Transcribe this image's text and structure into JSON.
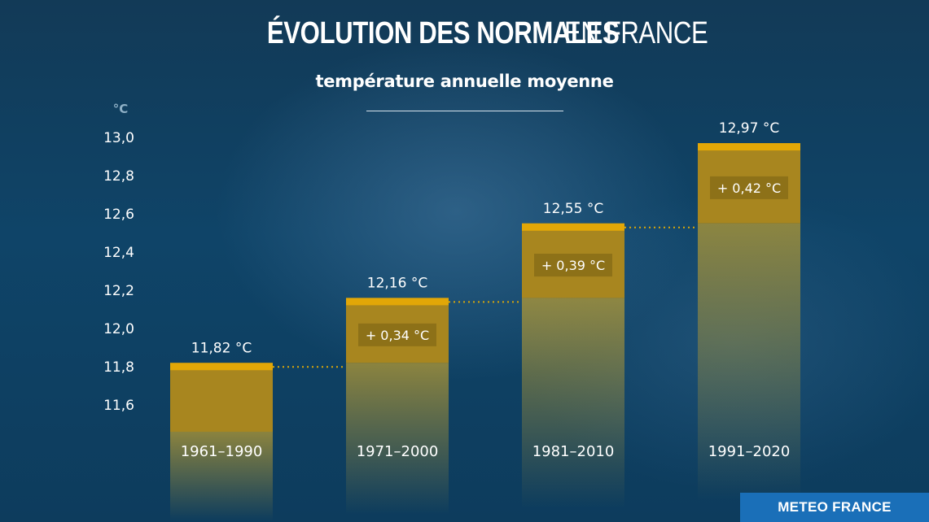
{
  "title": {
    "bold": "ÉVOLUTION DES NORMALES",
    "light": "EN FRANCE"
  },
  "subtitle": "température annuelle moyenne",
  "brand": "METEO FRANCE",
  "colors": {
    "bar": "#a8861f",
    "bar_cap": "#e2a707",
    "delta_box": "#8d7118",
    "connector": "#d9a70a"
  },
  "chart_data": {
    "type": "bar",
    "title": "ÉVOLUTION DES NORMALES EN FRANCE",
    "subtitle": "température annuelle moyenne",
    "ylabel": "°C",
    "ylim": [
      11.4,
      13.0
    ],
    "yticks": [
      11.6,
      11.8,
      12.0,
      12.2,
      12.4,
      12.6,
      12.8,
      13.0
    ],
    "ytick_labels": [
      "11,6",
      "11,8",
      "12,0",
      "12,2",
      "12,4",
      "12,6",
      "12,8",
      "13,0"
    ],
    "categories": [
      "1961–1990",
      "1971–2000",
      "1981–2010",
      "1991–2020"
    ],
    "values": [
      11.82,
      12.16,
      12.55,
      12.97
    ],
    "value_labels": [
      "11,82 °C",
      "12,16 °C",
      "12,55 °C",
      "12,97 °C"
    ],
    "deltas": [
      null,
      0.34,
      0.39,
      0.42
    ],
    "delta_labels": [
      "",
      "+ 0,34 °C",
      "+ 0,39 °C",
      "+ 0,42 °C"
    ],
    "grid": true,
    "legend": "none"
  }
}
